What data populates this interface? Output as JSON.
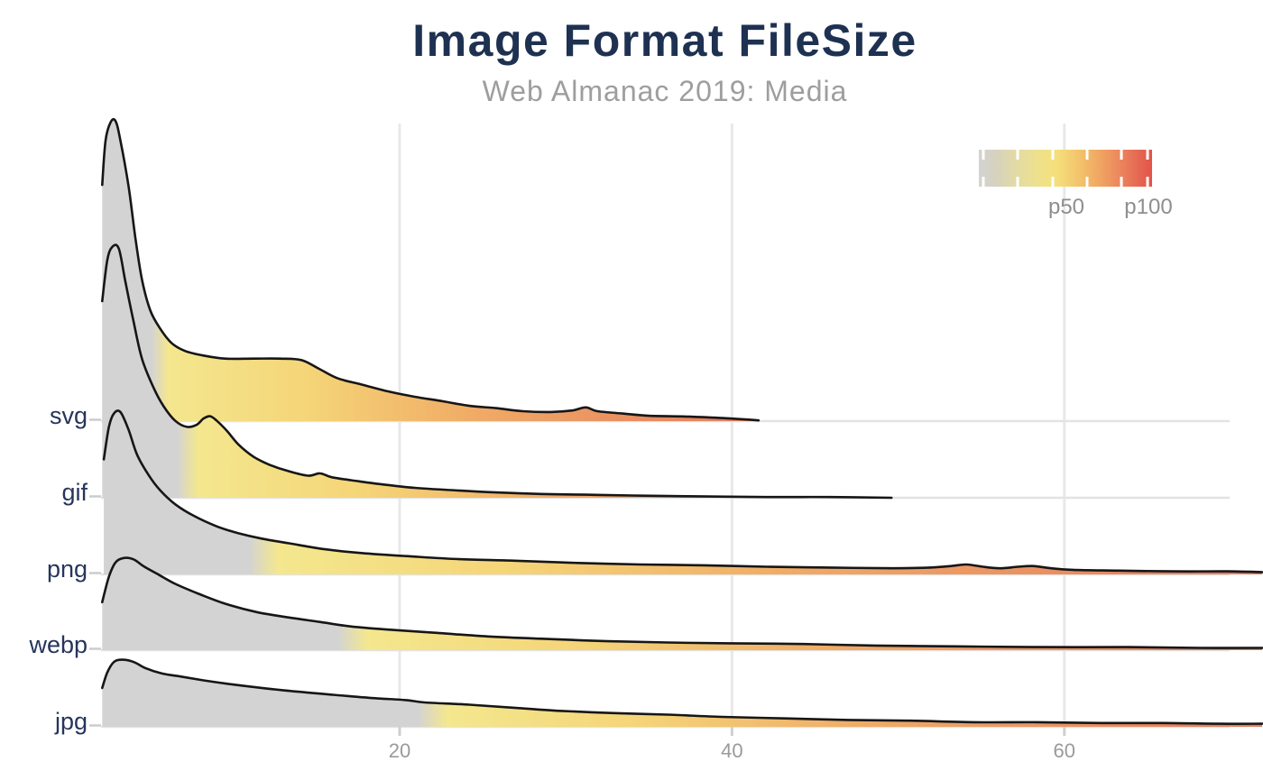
{
  "page": {
    "title": "Image Format FileSize",
    "subtitle": "Web Almanac 2019: Media"
  },
  "chart_data": {
    "type": "area",
    "subtype": "ridgeline-density",
    "title": "Image Format FileSize",
    "subtitle": "Web Almanac 2019: Media",
    "xlabel": "",
    "ylabel": "",
    "x_axis": {
      "ticks": [
        20,
        40,
        60
      ],
      "displayed_range": [
        2,
        72
      ],
      "grid": true
    },
    "categories": [
      "svg",
      "gif",
      "png",
      "webp",
      "jpg"
    ],
    "legend": {
      "labels": [
        "p50",
        "p100"
      ],
      "position": "top-right",
      "notch_fractions": [
        0.026,
        0.224,
        0.427,
        0.625,
        0.823,
        0.974
      ],
      "gradient_stops": [
        [
          0,
          "#d3d3d3"
        ],
        [
          0.1,
          "#d6d2bd"
        ],
        [
          0.22,
          "#e3dba4"
        ],
        [
          0.35,
          "#efe18b"
        ],
        [
          0.45,
          "#f5df7b"
        ],
        [
          0.58,
          "#f3c36c"
        ],
        [
          0.7,
          "#f0a562"
        ],
        [
          0.82,
          "#eb855d"
        ],
        [
          0.92,
          "#e56852"
        ],
        [
          1,
          "#e2544a"
        ]
      ]
    },
    "colors": {
      "ramp": {
        "below_p50": "#d3d3d3",
        "at_p50": "#f4e78e",
        "q1": "#f5d578",
        "q2": "#f0ac66",
        "q3": "#ea9062",
        "at_end": "#e5795c"
      },
      "line": "#161616",
      "title": "#1e3151",
      "subtitle": "#9e9e9e",
      "category_label": "#26355c",
      "tick_label": "#9a9a9a"
    },
    "height_unit": "row_spacing (1.0 = vertical gap between category baselines)",
    "series": [
      {
        "name": "svg",
        "p50": 5.3,
        "p100": 41.6,
        "end_clipped": false,
        "points": [
          [
            2.1,
            3.1
          ],
          [
            2.3,
            3.68
          ],
          [
            2.6,
            3.92
          ],
          [
            2.9,
            3.94
          ],
          [
            3.2,
            3.68
          ],
          [
            3.7,
            3.06
          ],
          [
            4.1,
            2.4
          ],
          [
            4.5,
            1.85
          ],
          [
            5.0,
            1.45
          ],
          [
            5.6,
            1.21
          ],
          [
            6.3,
            1.02
          ],
          [
            7.1,
            0.92
          ],
          [
            8.2,
            0.86
          ],
          [
            9.5,
            0.82
          ],
          [
            11.2,
            0.82
          ],
          [
            12.8,
            0.82
          ],
          [
            14.1,
            0.8
          ],
          [
            15.2,
            0.68
          ],
          [
            16.3,
            0.56
          ],
          [
            17.7,
            0.48
          ],
          [
            19.3,
            0.39
          ],
          [
            20.9,
            0.32
          ],
          [
            22.6,
            0.26
          ],
          [
            24.2,
            0.2
          ],
          [
            25.8,
            0.17
          ],
          [
            27.4,
            0.13
          ],
          [
            29.1,
            0.12
          ],
          [
            30.4,
            0.14
          ],
          [
            31.2,
            0.18
          ],
          [
            31.9,
            0.13
          ],
          [
            33.4,
            0.1
          ],
          [
            35.0,
            0.07
          ],
          [
            37.2,
            0.06
          ],
          [
            39.4,
            0.04
          ],
          [
            41.6,
            0.01
          ]
        ]
      },
      {
        "name": "gif",
        "p50": 6.9,
        "p100": 49.6,
        "end_clipped": false,
        "points": [
          [
            2.1,
            2.58
          ],
          [
            2.4,
            3.11
          ],
          [
            2.7,
            3.29
          ],
          [
            3.1,
            3.27
          ],
          [
            3.5,
            2.83
          ],
          [
            4.0,
            2.3
          ],
          [
            4.5,
            1.82
          ],
          [
            5.2,
            1.44
          ],
          [
            5.8,
            1.2
          ],
          [
            6.5,
            1.01
          ],
          [
            7.2,
            0.93
          ],
          [
            7.8,
            0.96
          ],
          [
            8.2,
            1.04
          ],
          [
            8.6,
            1.07
          ],
          [
            9.0,
            1.01
          ],
          [
            9.6,
            0.88
          ],
          [
            10.3,
            0.7
          ],
          [
            11.2,
            0.54
          ],
          [
            12.2,
            0.43
          ],
          [
            13.3,
            0.35
          ],
          [
            14.5,
            0.29
          ],
          [
            15.2,
            0.32
          ],
          [
            15.9,
            0.27
          ],
          [
            17.1,
            0.23
          ],
          [
            18.8,
            0.18
          ],
          [
            20.9,
            0.13
          ],
          [
            23.1,
            0.1
          ],
          [
            25.8,
            0.07
          ],
          [
            28.5,
            0.05
          ],
          [
            31.2,
            0.04
          ],
          [
            34.0,
            0.03
          ],
          [
            37.2,
            0.02
          ],
          [
            42.1,
            0.01
          ],
          [
            45.9,
            0.01
          ],
          [
            49.6,
            0.0
          ]
        ]
      },
      {
        "name": "png",
        "p50": 11.3,
        "p100": 72,
        "end_clipped": true,
        "points": [
          [
            2.2,
            1.51
          ],
          [
            2.5,
            1.93
          ],
          [
            2.8,
            2.11
          ],
          [
            3.2,
            2.13
          ],
          [
            3.7,
            1.89
          ],
          [
            4.2,
            1.57
          ],
          [
            4.9,
            1.3
          ],
          [
            5.6,
            1.1
          ],
          [
            6.5,
            0.92
          ],
          [
            7.6,
            0.77
          ],
          [
            9.0,
            0.63
          ],
          [
            10.3,
            0.54
          ],
          [
            11.7,
            0.47
          ],
          [
            13.3,
            0.41
          ],
          [
            15.5,
            0.33
          ],
          [
            17.7,
            0.28
          ],
          [
            20.4,
            0.24
          ],
          [
            23.6,
            0.2
          ],
          [
            26.9,
            0.18
          ],
          [
            30.7,
            0.15
          ],
          [
            34.5,
            0.13
          ],
          [
            38.3,
            0.12
          ],
          [
            42.1,
            0.1
          ],
          [
            45.9,
            0.09
          ],
          [
            49.7,
            0.08
          ],
          [
            51.9,
            0.09
          ],
          [
            53.2,
            0.11
          ],
          [
            54.1,
            0.13
          ],
          [
            55.1,
            0.1
          ],
          [
            56.1,
            0.08
          ],
          [
            57.2,
            0.1
          ],
          [
            58.1,
            0.11
          ],
          [
            59.2,
            0.08
          ],
          [
            60.5,
            0.06
          ],
          [
            63.3,
            0.05
          ],
          [
            66.5,
            0.04
          ],
          [
            69.8,
            0.04
          ],
          [
            71.9,
            0.03
          ]
        ]
      },
      {
        "name": "webp",
        "p50": 16.7,
        "p100": 72,
        "end_clipped": true,
        "points": [
          [
            2.1,
            0.63
          ],
          [
            2.5,
            0.96
          ],
          [
            2.9,
            1.15
          ],
          [
            3.4,
            1.21
          ],
          [
            4.0,
            1.19
          ],
          [
            4.6,
            1.1
          ],
          [
            5.5,
            0.99
          ],
          [
            6.5,
            0.87
          ],
          [
            7.9,
            0.74
          ],
          [
            9.5,
            0.61
          ],
          [
            11.4,
            0.5
          ],
          [
            13.3,
            0.43
          ],
          [
            15.2,
            0.37
          ],
          [
            17.1,
            0.31
          ],
          [
            19.3,
            0.27
          ],
          [
            22.0,
            0.23
          ],
          [
            25.3,
            0.18
          ],
          [
            28.5,
            0.15
          ],
          [
            32.3,
            0.12
          ],
          [
            36.1,
            0.1
          ],
          [
            39.9,
            0.09
          ],
          [
            44.3,
            0.08
          ],
          [
            48.6,
            0.06
          ],
          [
            53.5,
            0.05
          ],
          [
            58.4,
            0.04
          ],
          [
            63.8,
            0.04
          ],
          [
            68.2,
            0.03
          ],
          [
            71.9,
            0.03
          ]
        ]
      },
      {
        "name": "jpg",
        "p50": 21.5,
        "p100": 72,
        "end_clipped": true,
        "points": [
          [
            2.1,
            0.51
          ],
          [
            2.4,
            0.71
          ],
          [
            2.8,
            0.85
          ],
          [
            3.3,
            0.88
          ],
          [
            4.0,
            0.85
          ],
          [
            4.7,
            0.77
          ],
          [
            5.7,
            0.7
          ],
          [
            6.8,
            0.66
          ],
          [
            8.2,
            0.61
          ],
          [
            9.8,
            0.56
          ],
          [
            11.7,
            0.51
          ],
          [
            13.9,
            0.46
          ],
          [
            16.0,
            0.42
          ],
          [
            18.2,
            0.38
          ],
          [
            20.4,
            0.35
          ],
          [
            21.5,
            0.32
          ],
          [
            24.2,
            0.29
          ],
          [
            26.9,
            0.25
          ],
          [
            29.6,
            0.21
          ],
          [
            32.9,
            0.18
          ],
          [
            36.1,
            0.16
          ],
          [
            39.4,
            0.13
          ],
          [
            43.2,
            0.11
          ],
          [
            47.0,
            0.09
          ],
          [
            50.8,
            0.08
          ],
          [
            54.6,
            0.06
          ],
          [
            58.4,
            0.06
          ],
          [
            62.2,
            0.05
          ],
          [
            66.0,
            0.05
          ],
          [
            69.2,
            0.04
          ],
          [
            71.9,
            0.04
          ]
        ]
      }
    ]
  }
}
